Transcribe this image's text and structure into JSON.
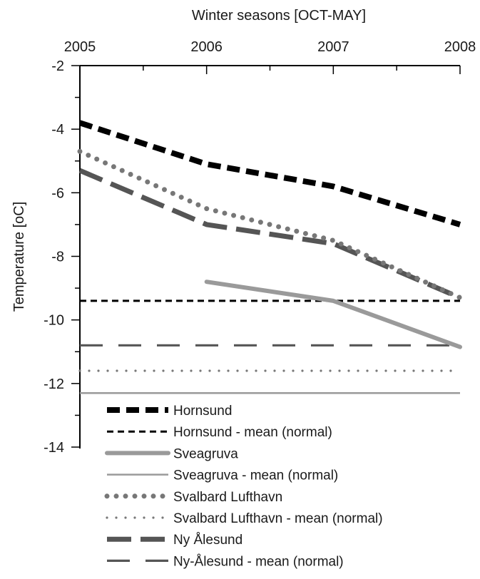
{
  "chart_data": {
    "type": "line",
    "xlabel": "Winter seasons [OCT-MAY]",
    "ylabel": "Temperature [oC]",
    "x_ticks": [
      "2005",
      "2006",
      "2007",
      "2008"
    ],
    "y_ticks": [
      "-2",
      "-4",
      "-6",
      "-8",
      "-10",
      "-12",
      "-14"
    ],
    "xlim": [
      2005,
      2008
    ],
    "ylim": [
      -14,
      -2
    ],
    "x_axis_position": "top",
    "grid": false,
    "legend_position": "bottom-center",
    "series": [
      {
        "name": "Hornsund",
        "x": [
          2005,
          2006,
          2007,
          2008
        ],
        "y": [
          -3.8,
          -5.1,
          -5.8,
          -7.0
        ],
        "color": "#000000",
        "style": "thick-dash"
      },
      {
        "name": "Hornsund - mean (normal)",
        "x": [
          2005,
          2008
        ],
        "y": [
          -9.4,
          -9.4
        ],
        "color": "#000000",
        "style": "short-dash"
      },
      {
        "name": "Sveagruva",
        "x": [
          2006,
          2007,
          2008
        ],
        "y": [
          -8.8,
          -9.4,
          -10.85
        ],
        "color": "#9a9a9a",
        "style": "thick-solid"
      },
      {
        "name": "Sveagruva -  mean (normal)",
        "x": [
          2005,
          2008
        ],
        "y": [
          -12.3,
          -12.3
        ],
        "color": "#9a9a9a",
        "style": "thin-solid"
      },
      {
        "name": "Svalbard Lufthavn",
        "x": [
          2005,
          2006,
          2007,
          2008
        ],
        "y": [
          -4.7,
          -6.5,
          -7.5,
          -9.3
        ],
        "color": "#777777",
        "style": "thick-dot"
      },
      {
        "name": "Svalbard Lufthavn - mean (normal)",
        "x": [
          2005,
          2008
        ],
        "y": [
          -11.6,
          -11.6
        ],
        "color": "#777777",
        "style": "thin-dot"
      },
      {
        "name": "Ny Ålesund",
        "x": [
          2005,
          2006,
          2007,
          2008
        ],
        "y": [
          -5.3,
          -7.0,
          -7.6,
          -9.3
        ],
        "color": "#555555",
        "style": "thick-longdash"
      },
      {
        "name": "Ny-Ålesund - mean (normal)",
        "x": [
          2005,
          2008
        ],
        "y": [
          -10.8,
          -10.8
        ],
        "color": "#555555",
        "style": "thin-longdash"
      }
    ]
  }
}
